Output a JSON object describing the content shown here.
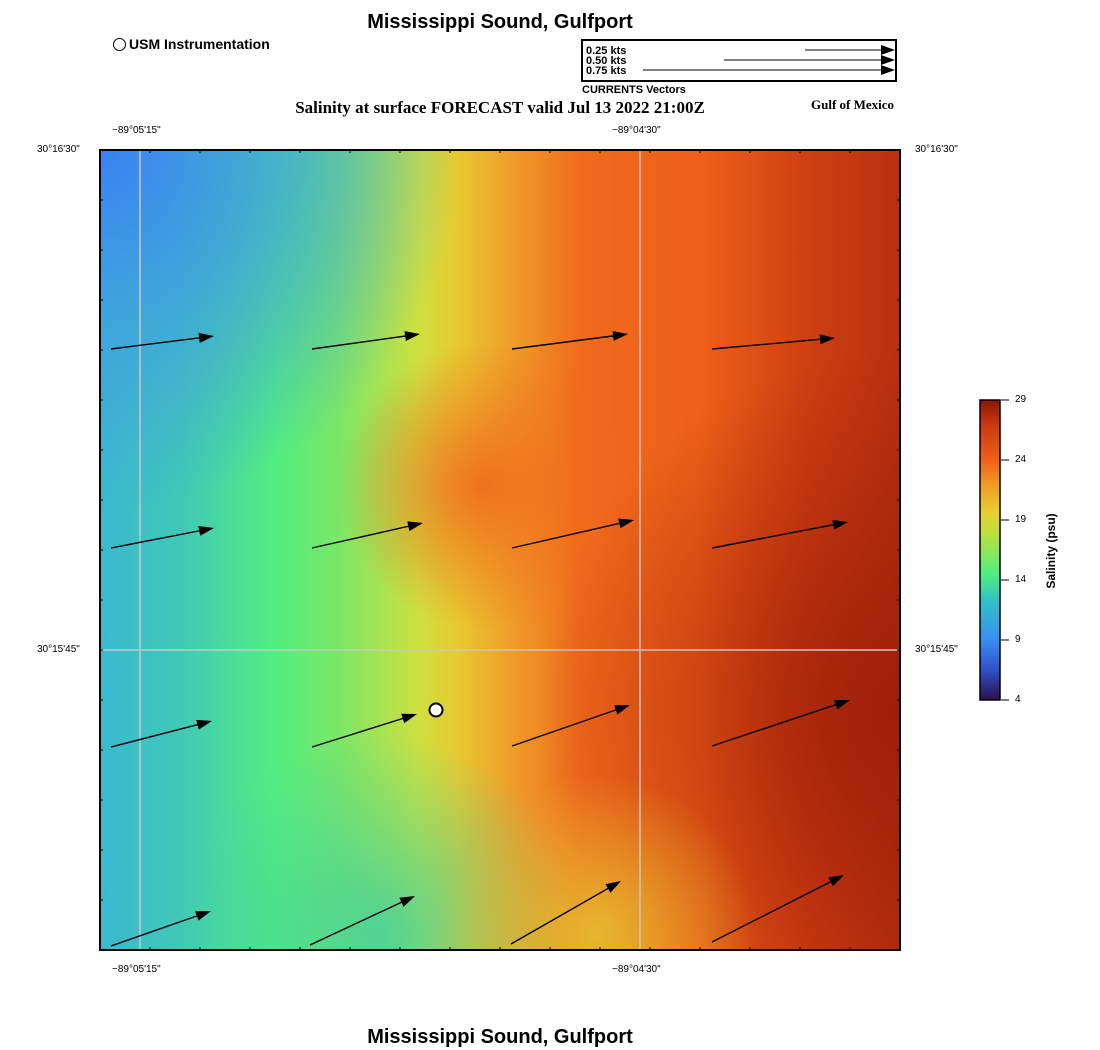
{
  "header": {
    "title": "Mississippi Sound, Gulfport",
    "subtitle": "Salinity at surface FORECAST valid Jul 13 2022 21:00Z",
    "region": "Gulf of Mexico",
    "footer_title": "Mississippi Sound, Gulfport"
  },
  "station_legend": {
    "label": "USM Instrumentation"
  },
  "vector_legend": {
    "title": "CURRENTS Vectors",
    "entries": [
      "0.25 kts",
      "0.50 kts",
      "0.75 kts"
    ]
  },
  "axes": {
    "lon_labels": [
      "−89°05'15\"",
      "−89°04'30\""
    ],
    "lat_labels": [
      "30°16'30\"",
      "30°15'45\""
    ]
  },
  "colorbar": {
    "label": "Salinity (psu)",
    "ticks": [
      "29",
      "24",
      "19",
      "14",
      "9",
      "4"
    ],
    "min": 4,
    "max": 29
  },
  "colors": {
    "low": "#3a8ef0",
    "mid": "#52ee80",
    "yellow": "#dcd734",
    "orange": "#f06018",
    "high": "#a02008"
  }
}
